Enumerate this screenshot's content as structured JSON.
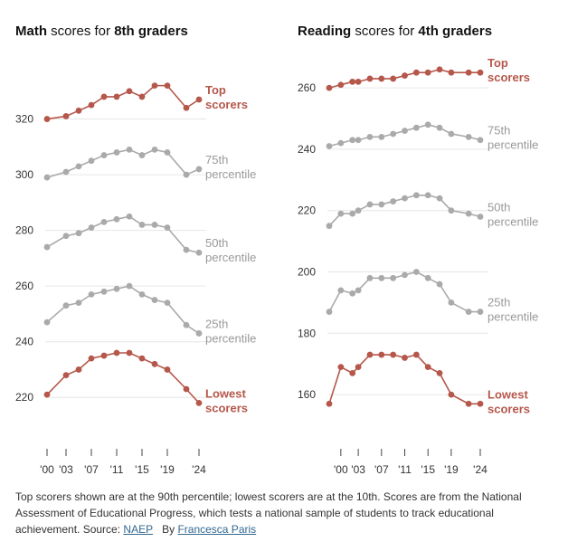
{
  "chart_data": [
    {
      "type": "line",
      "title": {
        "part1": "Math",
        "part2": " scores for ",
        "part3": "8th graders"
      },
      "categories": [
        "2000",
        "2003",
        "2005",
        "2007",
        "2009",
        "2011",
        "2013",
        "2015",
        "2017",
        "2019",
        "2022",
        "2024"
      ],
      "x_tick_labels": [
        {
          "x": "2000",
          "label": "'00"
        },
        {
          "x": "2003",
          "label": "'03"
        },
        {
          "x": "2007",
          "label": "'07"
        },
        {
          "x": "2011",
          "label": "'11"
        },
        {
          "x": "2015",
          "label": "'15"
        },
        {
          "x": "2019",
          "label": "'19"
        },
        {
          "x": "2024",
          "label": "'24"
        }
      ],
      "y_ticks": [
        220,
        240,
        260,
        280,
        300,
        320
      ],
      "ylim": [
        210,
        340
      ],
      "series": [
        {
          "name": "Top scorers",
          "label_lines": [
            "Top",
            "scorers"
          ],
          "color": "#b5574b",
          "values": [
            320,
            321,
            323,
            325,
            328,
            328,
            330,
            328,
            332,
            332,
            324,
            327
          ]
        },
        {
          "name": "75th percentile",
          "label_lines": [
            "75th",
            "percentile"
          ],
          "color": "#aaaaaa",
          "values": [
            299,
            301,
            303,
            305,
            307,
            308,
            309,
            307,
            309,
            308,
            300,
            302
          ]
        },
        {
          "name": "50th percentile",
          "label_lines": [
            "50th",
            "percentile"
          ],
          "color": "#aaaaaa",
          "values": [
            274,
            278,
            279,
            281,
            283,
            284,
            285,
            282,
            282,
            281,
            273,
            272
          ]
        },
        {
          "name": "25th percentile",
          "label_lines": [
            "25th",
            "percentile"
          ],
          "color": "#aaaaaa",
          "values": [
            247,
            253,
            254,
            257,
            258,
            259,
            260,
            257,
            255,
            254,
            246,
            243
          ]
        },
        {
          "name": "Lowest scorers",
          "label_lines": [
            "Lowest",
            "scorers"
          ],
          "color": "#b5574b",
          "values": [
            221,
            228,
            230,
            234,
            235,
            236,
            236,
            234,
            232,
            230,
            223,
            218
          ]
        }
      ]
    },
    {
      "type": "line",
      "title": {
        "part1": "Reading",
        "part2": " scores for ",
        "part3": "4th graders"
      },
      "categories": [
        "1998",
        "2000",
        "2002",
        "2003",
        "2005",
        "2007",
        "2009",
        "2011",
        "2013",
        "2015",
        "2017",
        "2019",
        "2022",
        "2024"
      ],
      "x_tick_labels": [
        {
          "x": "2000",
          "label": "'00"
        },
        {
          "x": "2003",
          "label": "'03"
        },
        {
          "x": "2007",
          "label": "'07"
        },
        {
          "x": "2011",
          "label": "'11"
        },
        {
          "x": "2015",
          "label": "'15"
        },
        {
          "x": "2019",
          "label": "'19"
        },
        {
          "x": "2024",
          "label": "'24"
        }
      ],
      "y_ticks": [
        160,
        180,
        200,
        220,
        240,
        260
      ],
      "ylim": [
        150,
        268
      ],
      "series": [
        {
          "name": "Top scorers",
          "label_lines": [
            "Top",
            "scorers"
          ],
          "color": "#b5574b",
          "values": [
            260,
            261,
            262,
            262,
            263,
            263,
            263,
            264,
            265,
            265,
            266,
            265,
            265,
            265
          ]
        },
        {
          "name": "75th percentile",
          "label_lines": [
            "75th",
            "percentile"
          ],
          "color": "#aaaaaa",
          "values": [
            241,
            242,
            243,
            243,
            244,
            244,
            245,
            246,
            247,
            248,
            247,
            245,
            244,
            243
          ]
        },
        {
          "name": "50th percentile",
          "label_lines": [
            "50th",
            "percentile"
          ],
          "color": "#aaaaaa",
          "values": [
            215,
            219,
            219,
            220,
            222,
            222,
            223,
            224,
            225,
            225,
            224,
            220,
            219,
            218
          ]
        },
        {
          "name": "25th percentile",
          "label_lines": [
            "25th",
            "percentile"
          ],
          "color": "#aaaaaa",
          "values": [
            187,
            194,
            193,
            194,
            198,
            198,
            198,
            199,
            200,
            198,
            196,
            190,
            187,
            187
          ]
        },
        {
          "name": "Lowest scorers",
          "label_lines": [
            "Lowest",
            "scorers"
          ],
          "color": "#b5574b",
          "values": [
            157,
            169,
            167,
            169,
            173,
            173,
            173,
            172,
            173,
            169,
            167,
            160,
            157,
            157
          ]
        }
      ]
    }
  ],
  "footer": {
    "note": "Top scorers shown are at the 90th percentile; lowest scorers are at the 10th. Scores are from the National Assessment of Educational Progress, which tests a national sample of students to track educational achievement. Source: ",
    "source_link": "NAEP",
    "byline_prefix": "By ",
    "author_link": "Francesca Paris"
  }
}
